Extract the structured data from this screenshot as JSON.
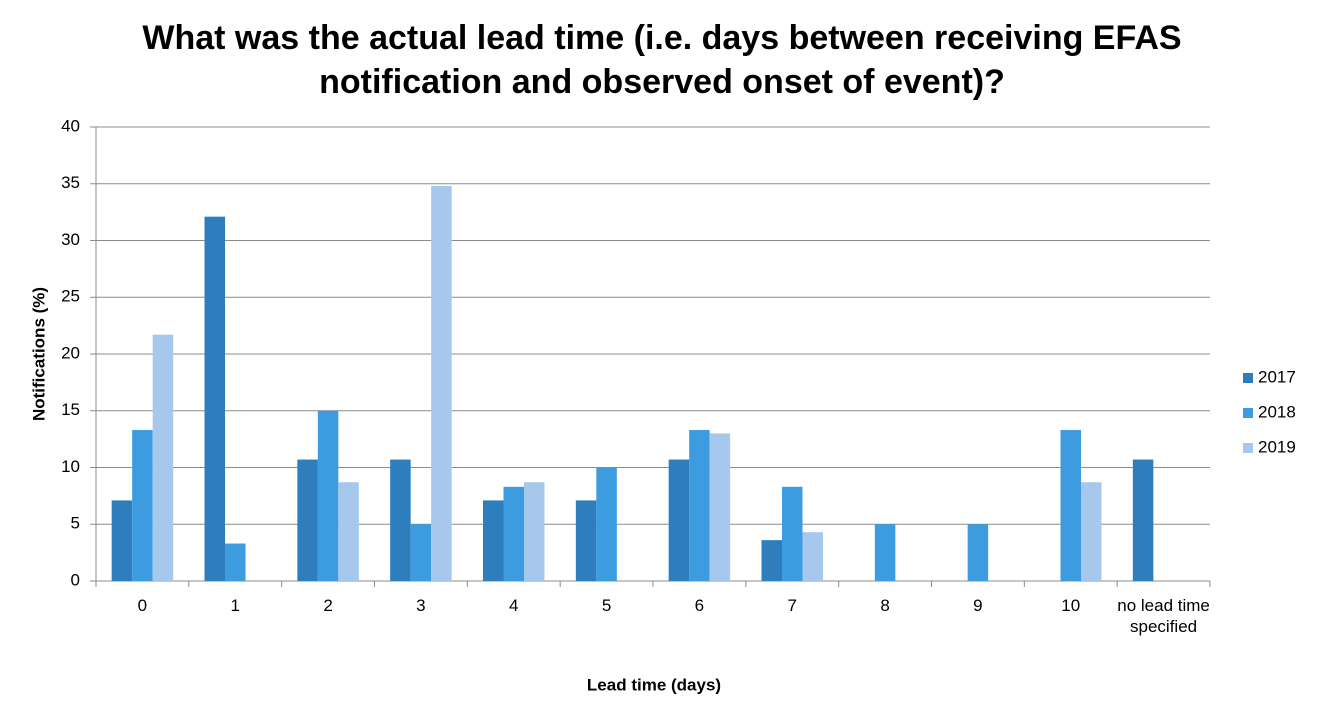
{
  "chart_data": {
    "type": "bar",
    "title": "What was the actual lead time (i.e. days between receiving EFAS notification and observed onset of event)?",
    "x_label": "Lead time (days)",
    "y_label": "Notifications (%)",
    "categories": [
      "0",
      "1",
      "2",
      "3",
      "4",
      "5",
      "6",
      "7",
      "8",
      "9",
      "10",
      "no lead time specified"
    ],
    "series": [
      {
        "name": "2017",
        "color": "#2e7ebd",
        "values": [
          7.1,
          32.1,
          10.7,
          10.7,
          7.1,
          7.1,
          10.7,
          3.6,
          0,
          0,
          0,
          10.7
        ]
      },
      {
        "name": "2018",
        "color": "#3d9be0",
        "values": [
          13.3,
          3.3,
          15,
          5,
          8.3,
          10,
          13.3,
          8.3,
          5,
          5,
          13.3,
          0
        ]
      },
      {
        "name": "2019",
        "color": "#a6c8ec",
        "values": [
          21.7,
          0,
          8.7,
          34.8,
          8.7,
          0,
          13,
          4.3,
          0,
          0,
          8.7,
          0
        ]
      }
    ],
    "ylim": [
      0,
      40
    ],
    "yticks": [
      0,
      5,
      10,
      15,
      20,
      25,
      30,
      35,
      40
    ],
    "grid": true,
    "legend": "right"
  }
}
